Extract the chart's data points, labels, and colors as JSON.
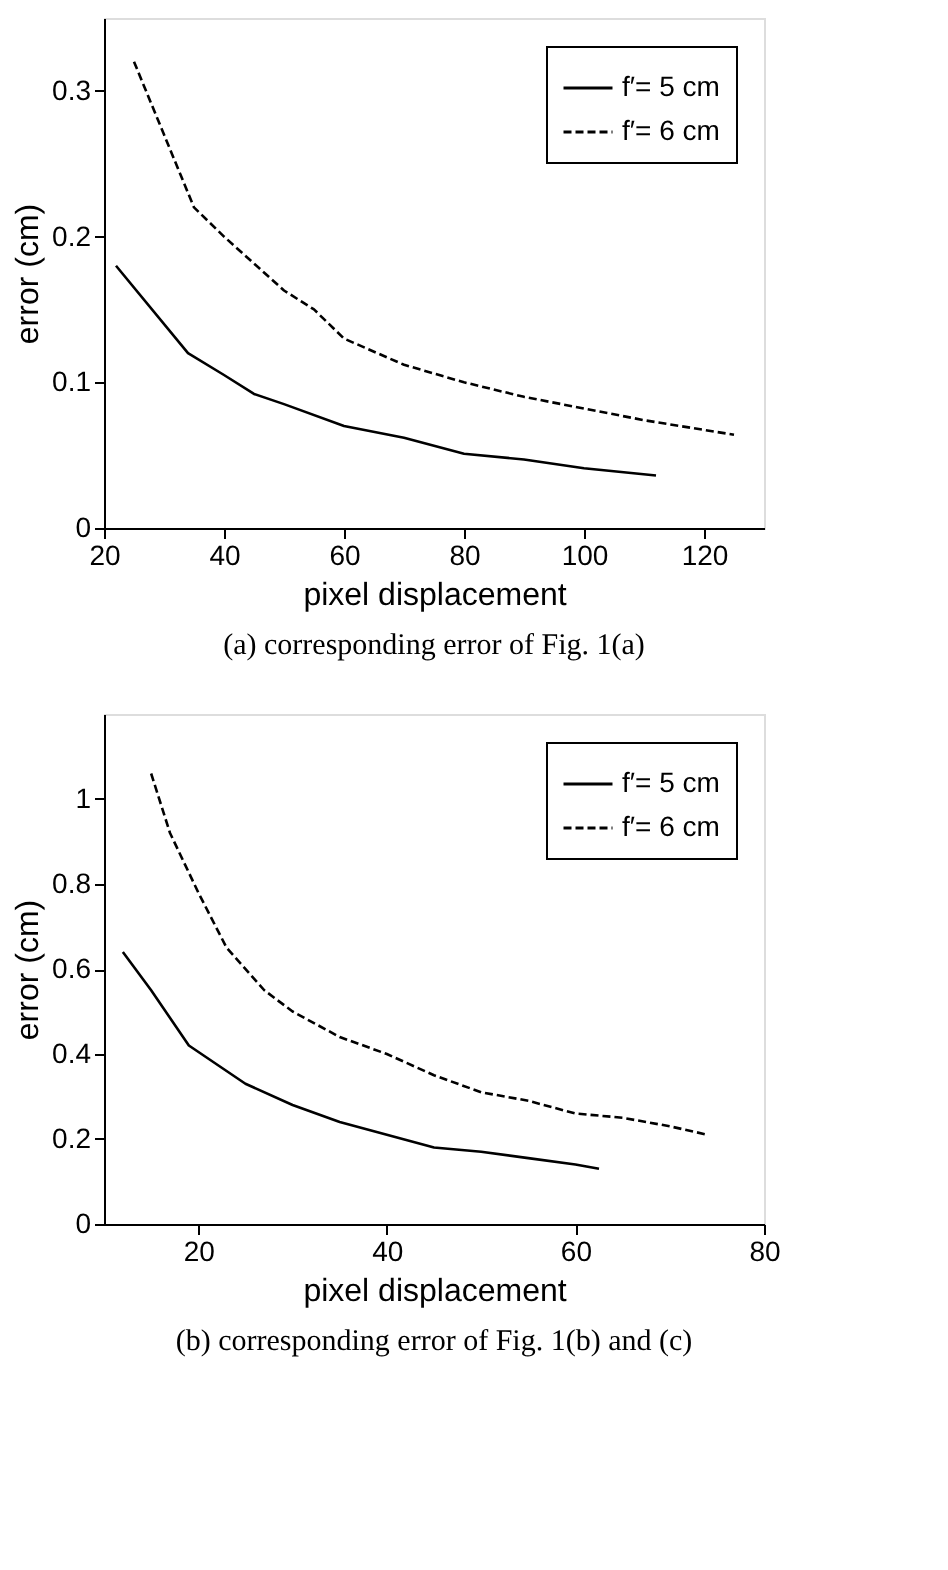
{
  "chart_data": [
    {
      "type": "line",
      "xlabel": "pixel displacement",
      "ylabel": "error (cm)",
      "annotations": [
        "(a) corresponding error of Fig. 1(a)"
      ],
      "xlim": [
        20,
        130
      ],
      "xticks": [
        20,
        40,
        60,
        80,
        100,
        120
      ],
      "ylim": [
        0,
        0.35
      ],
      "yticks": [
        0,
        0.1,
        0.2,
        0.3
      ],
      "grid": false,
      "legend": "top right",
      "marker": "none",
      "series": [
        {
          "name": "f′= 5 cm",
          "color": "#000000",
          "line_style": "solid",
          "x": [
            22,
            34,
            40,
            45,
            50,
            60,
            70,
            80,
            90,
            100,
            112
          ],
          "values": [
            0.18,
            0.12,
            0.105,
            0.092,
            0.085,
            0.07,
            0.062,
            0.051,
            0.047,
            0.041,
            0.036
          ]
        },
        {
          "name": "f′= 6 cm",
          "color": "#000000",
          "line_style": "dashed",
          "x": [
            25,
            30,
            35,
            40,
            50,
            55,
            60,
            70,
            80,
            90,
            100,
            110,
            125
          ],
          "values": [
            0.32,
            0.27,
            0.22,
            0.2,
            0.163,
            0.15,
            0.13,
            0.112,
            0.1,
            0.09,
            0.082,
            0.074,
            0.064
          ]
        }
      ]
    },
    {
      "type": "line",
      "xlabel": "pixel displacement",
      "ylabel": "error (cm)",
      "annotations": [
        "(b) corresponding error of Fig. 1(b) and (c)"
      ],
      "xlim": [
        10,
        80
      ],
      "xticks": [
        20,
        40,
        60,
        80
      ],
      "ylim": [
        0,
        1.2
      ],
      "yticks": [
        0,
        0.2,
        0.4,
        0.6,
        0.8,
        1
      ],
      "grid": false,
      "legend": "top right",
      "marker": "none",
      "series": [
        {
          "name": "f′= 5 cm",
          "color": "#000000",
          "line_style": "solid",
          "x": [
            12,
            15,
            19,
            25,
            30,
            35,
            40,
            45,
            50,
            55,
            60,
            62.5
          ],
          "values": [
            0.64,
            0.55,
            0.42,
            0.33,
            0.28,
            0.24,
            0.21,
            0.18,
            0.17,
            0.155,
            0.14,
            0.13
          ]
        },
        {
          "name": "f′= 6 cm",
          "color": "#000000",
          "line_style": "dashed",
          "x": [
            15,
            17,
            20,
            23,
            27,
            30,
            35,
            40,
            45,
            50,
            55,
            60,
            65,
            70,
            74
          ],
          "values": [
            1.06,
            0.92,
            0.78,
            0.65,
            0.55,
            0.5,
            0.44,
            0.4,
            0.35,
            0.31,
            0.29,
            0.26,
            0.25,
            0.23,
            0.21
          ]
        }
      ]
    }
  ]
}
